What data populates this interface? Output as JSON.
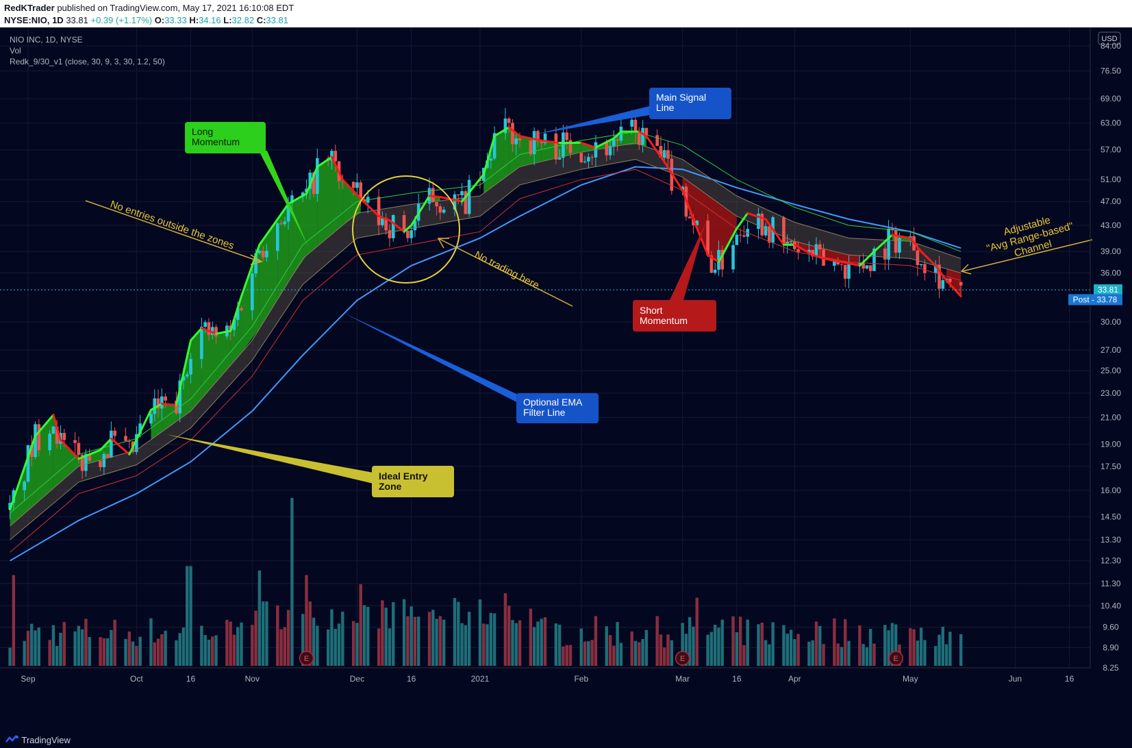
{
  "header": {
    "author": "RedKTrader",
    "published": "published on TradingView.com, May 17, 2021 16:10:08 EDT",
    "symbol": "NYSE:NIO, 1D",
    "last": "33.81",
    "change": "+0.39 (+1.17%)",
    "open": "33.33",
    "high": "34.16",
    "low": "32.82",
    "close": "33.81"
  },
  "legend": {
    "title": "NIO INC, 1D, NYSE",
    "vol": "Vol",
    "indicator": "Redk_9/30_v1 (close, 30, 9, 3, 30, 1.2, 50)"
  },
  "footer": {
    "brand": "TradingView"
  },
  "colors": {
    "background": "#040720",
    "up": "#26c6da",
    "down": "#ef5350",
    "signal_long": "#33ff33",
    "signal_short": "#ff1a1a",
    "ema": "#3f9bff",
    "channel_mid": "#2ecc40",
    "channel_low": "#d32f2f",
    "annotation": "#e8c832"
  },
  "chart_data": {
    "type": "candlestick",
    "currency": "USD",
    "y_scale": "log",
    "ylim": [
      8.25,
      90
    ],
    "y_ticks": [
      "84.00",
      "76.50",
      "69.00",
      "63.00",
      "57.00",
      "51.00",
      "47.00",
      "43.00",
      "39.00",
      "36.00",
      "33.81",
      "30.00",
      "27.00",
      "25.00",
      "23.00",
      "21.00",
      "19.00",
      "17.50",
      "16.00",
      "14.50",
      "13.30",
      "12.30",
      "11.30",
      "10.40",
      "9.60",
      "8.90",
      "8.25"
    ],
    "x_ticks": [
      {
        "label": "Sep",
        "date": "2020-09-01"
      },
      {
        "label": "Oct",
        "date": "2020-10-01"
      },
      {
        "label": "16",
        "date": "2020-10-16"
      },
      {
        "label": "Nov",
        "date": "2020-11-02"
      },
      {
        "label": "Dec",
        "date": "2020-12-01"
      },
      {
        "label": "16",
        "date": "2020-12-16"
      },
      {
        "label": "2021",
        "date": "2021-01-04"
      },
      {
        "label": "Feb",
        "date": "2021-02-01"
      },
      {
        "label": "Mar",
        "date": "2021-03-01"
      },
      {
        "label": "16",
        "date": "2021-03-16"
      },
      {
        "label": "Apr",
        "date": "2021-04-01"
      },
      {
        "label": "May",
        "date": "2021-05-03"
      },
      {
        "label": "Jun",
        "date": "2021-06-01"
      },
      {
        "label": "16",
        "date": "2021-06-16"
      }
    ],
    "last_price": {
      "label": "33.81",
      "value": 33.81
    },
    "post_price": {
      "label": "Post - 33.78",
      "value": 33.78
    },
    "signal_line": [
      [
        "2020-08-27",
        14.9
      ],
      [
        "2020-09-03",
        19.6
      ],
      [
        "2020-09-08",
        21.2
      ],
      [
        "2020-09-10",
        19.3
      ],
      [
        "2020-09-15",
        18.0
      ],
      [
        "2020-09-21",
        18.6
      ],
      [
        "2020-09-24",
        19.4
      ],
      [
        "2020-09-29",
        18.3
      ],
      [
        "2020-10-05",
        21.6
      ],
      [
        "2020-10-08",
        22.1
      ],
      [
        "2020-10-12",
        22.0
      ],
      [
        "2020-10-16",
        28.0
      ],
      [
        "2020-10-19",
        29.3
      ],
      [
        "2020-10-23",
        28.7
      ],
      [
        "2020-10-27",
        29.0
      ],
      [
        "2020-10-30",
        33.0
      ],
      [
        "2020-11-04",
        40.0
      ],
      [
        "2020-11-09",
        44.0
      ],
      [
        "2020-11-12",
        46.6
      ],
      [
        "2020-11-17",
        48.4
      ],
      [
        "2020-11-20",
        53.5
      ],
      [
        "2020-11-24",
        55.5
      ],
      [
        "2020-11-27",
        51.0
      ],
      [
        "2020-12-02",
        47.5
      ],
      [
        "2020-12-07",
        44.5
      ],
      [
        "2020-12-10",
        43.8
      ],
      [
        "2020-12-14",
        42.0
      ],
      [
        "2020-12-16",
        43.0
      ],
      [
        "2020-12-21",
        48.0
      ],
      [
        "2020-12-24",
        47.8
      ],
      [
        "2020-12-30",
        47.0
      ],
      [
        "2021-01-05",
        52.0
      ],
      [
        "2021-01-08",
        60.0
      ],
      [
        "2021-01-12",
        62.0
      ],
      [
        "2021-01-15",
        60.0
      ],
      [
        "2021-01-21",
        59.0
      ],
      [
        "2021-01-26",
        58.5
      ],
      [
        "2021-02-01",
        58.5
      ],
      [
        "2021-02-05",
        57.5
      ],
      [
        "2021-02-10",
        59.5
      ],
      [
        "2021-02-12",
        61.0
      ],
      [
        "2021-02-17",
        61.0
      ],
      [
        "2021-02-19",
        60.0
      ],
      [
        "2021-02-24",
        54.5
      ],
      [
        "2021-03-01",
        49.0
      ],
      [
        "2021-03-04",
        44.0
      ],
      [
        "2021-03-08",
        38.5
      ],
      [
        "2021-03-11",
        37.5
      ],
      [
        "2021-03-16",
        42.5
      ],
      [
        "2021-03-19",
        45.0
      ],
      [
        "2021-03-24",
        44.0
      ],
      [
        "2021-03-29",
        40.0
      ],
      [
        "2021-04-01",
        40.0
      ],
      [
        "2021-04-06",
        38.5
      ],
      [
        "2021-04-09",
        38.0
      ],
      [
        "2021-04-14",
        37.5
      ],
      [
        "2021-04-19",
        37.0
      ],
      [
        "2021-04-23",
        39.0
      ],
      [
        "2021-04-28",
        41.5
      ],
      [
        "2021-05-03",
        41.0
      ],
      [
        "2021-05-06",
        39.0
      ],
      [
        "2021-05-10",
        37.0
      ],
      [
        "2021-05-13",
        35.0
      ],
      [
        "2021-05-17",
        33.0
      ]
    ],
    "channel_upper": [
      [
        "2020-08-27",
        14.0
      ],
      [
        "2020-09-15",
        17.5
      ],
      [
        "2020-10-01",
        18.6
      ],
      [
        "2020-10-16",
        21.5
      ],
      [
        "2020-11-02",
        28.0
      ],
      [
        "2020-11-16",
        38.0
      ],
      [
        "2020-12-01",
        45.0
      ],
      [
        "2020-12-16",
        46.5
      ],
      [
        "2021-01-04",
        48.0
      ],
      [
        "2021-01-15",
        53.5
      ],
      [
        "2021-02-01",
        56.5
      ],
      [
        "2021-02-16",
        58.5
      ],
      [
        "2021-03-01",
        55.0
      ],
      [
        "2021-03-16",
        48.0
      ],
      [
        "2021-04-01",
        43.5
      ],
      [
        "2021-04-16",
        41.0
      ],
      [
        "2021-05-03",
        40.5
      ],
      [
        "2021-05-17",
        38.0
      ]
    ],
    "channel_lower": [
      [
        "2020-08-27",
        13.3
      ],
      [
        "2020-09-15",
        16.5
      ],
      [
        "2020-10-01",
        17.6
      ],
      [
        "2020-10-16",
        20.2
      ],
      [
        "2020-11-02",
        26.0
      ],
      [
        "2020-11-16",
        34.5
      ],
      [
        "2020-12-01",
        41.0
      ],
      [
        "2020-12-16",
        42.5
      ],
      [
        "2021-01-04",
        44.5
      ],
      [
        "2021-01-15",
        50.0
      ],
      [
        "2021-02-01",
        53.0
      ],
      [
        "2021-02-16",
        55.0
      ],
      [
        "2021-03-01",
        51.5
      ],
      [
        "2021-03-16",
        44.5
      ],
      [
        "2021-04-01",
        40.5
      ],
      [
        "2021-04-16",
        38.5
      ],
      [
        "2021-05-03",
        38.0
      ],
      [
        "2021-05-17",
        36.0
      ]
    ],
    "channel_mid": [
      [
        "2020-08-27",
        14.7
      ],
      [
        "2020-09-15",
        18.3
      ],
      [
        "2020-10-01",
        19.4
      ],
      [
        "2020-10-16",
        22.5
      ],
      [
        "2020-11-02",
        29.5
      ],
      [
        "2020-11-16",
        40.0
      ],
      [
        "2020-12-01",
        47.0
      ],
      [
        "2020-12-16",
        48.5
      ],
      [
        "2021-01-04",
        50.0
      ],
      [
        "2021-01-15",
        56.0
      ],
      [
        "2021-02-01",
        59.0
      ],
      [
        "2021-02-16",
        61.0
      ],
      [
        "2021-03-01",
        58.0
      ],
      [
        "2021-03-16",
        51.0
      ],
      [
        "2021-04-01",
        46.0
      ],
      [
        "2021-04-16",
        43.0
      ],
      [
        "2021-05-03",
        42.0
      ],
      [
        "2021-05-17",
        39.0
      ]
    ],
    "channel_low_line": [
      [
        "2020-08-27",
        12.7
      ],
      [
        "2020-09-15",
        15.8
      ],
      [
        "2020-10-01",
        16.9
      ],
      [
        "2020-10-16",
        19.3
      ],
      [
        "2020-11-02",
        24.5
      ],
      [
        "2020-11-16",
        32.5
      ],
      [
        "2020-12-01",
        38.5
      ],
      [
        "2020-12-16",
        40.0
      ],
      [
        "2021-01-04",
        42.0
      ],
      [
        "2021-01-15",
        47.5
      ],
      [
        "2021-02-01",
        51.0
      ],
      [
        "2021-02-16",
        53.0
      ],
      [
        "2021-03-01",
        49.0
      ],
      [
        "2021-03-16",
        42.5
      ],
      [
        "2021-04-01",
        39.0
      ],
      [
        "2021-04-16",
        37.5
      ],
      [
        "2021-05-03",
        37.0
      ],
      [
        "2021-05-17",
        35.0
      ]
    ],
    "ema_line": [
      [
        "2020-08-27",
        12.3
      ],
      [
        "2020-09-15",
        14.3
      ],
      [
        "2020-10-01",
        15.8
      ],
      [
        "2020-10-16",
        17.8
      ],
      [
        "2020-11-02",
        21.5
      ],
      [
        "2020-11-16",
        26.5
      ],
      [
        "2020-12-01",
        32.5
      ],
      [
        "2020-12-16",
        37.0
      ],
      [
        "2021-01-04",
        41.0
      ],
      [
        "2021-01-15",
        44.5
      ],
      [
        "2021-02-01",
        50.0
      ],
      [
        "2021-02-16",
        53.5
      ],
      [
        "2021-03-01",
        53.0
      ],
      [
        "2021-03-16",
        49.5
      ],
      [
        "2021-04-01",
        46.5
      ],
      [
        "2021-04-16",
        44.0
      ],
      [
        "2021-05-03",
        42.0
      ],
      [
        "2021-05-17",
        39.5
      ]
    ],
    "volume_axis_max": 74000000,
    "volume_peaks": [
      [
        "2020-08-28",
        40000000
      ],
      [
        "2020-10-15",
        44000000
      ],
      [
        "2020-10-16",
        44000000
      ],
      [
        "2020-11-04",
        42000000
      ],
      [
        "2020-11-13",
        74000000
      ],
      [
        "2020-11-17",
        40000000
      ],
      [
        "2020-12-02",
        36000000
      ],
      [
        "2021-01-11",
        32000000
      ],
      [
        "2021-03-05",
        30000000
      ]
    ],
    "earnings_markers": [
      {
        "label": "E",
        "date": "2020-11-17"
      },
      {
        "label": "E",
        "date": "2021-03-01"
      },
      {
        "label": "E",
        "date": "2021-04-29"
      }
    ]
  },
  "annotations": {
    "long_momentum": "Long Momentum",
    "main_signal": "Main Signal Line",
    "short_momentum": "Short Momentum",
    "optional_ema": "Optional EMA Filter Line",
    "ideal_entry": "Ideal Entry Zone",
    "no_entries": "No entries outside the zones",
    "no_trading": "No trading here",
    "adjustable_1": "Adjustable",
    "adjustable_2": "\"Avg Range-based\"",
    "adjustable_3": "Channel"
  }
}
